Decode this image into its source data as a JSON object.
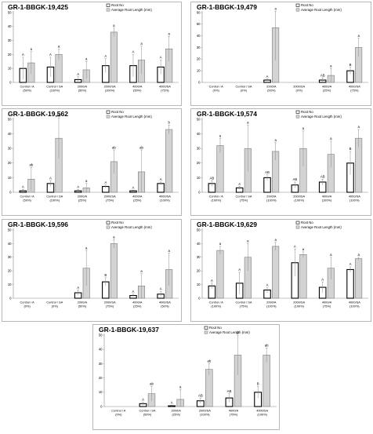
{
  "legend": {
    "root_no": "Root No",
    "root_length": "Average Root Length (mm)"
  },
  "colors": {
    "root_no_fill": "#ffffff",
    "root_length_fill": "#d3d3d3",
    "outline": "#000000",
    "error_bar": "#8c8c8c"
  },
  "chart_data": [
    {
      "type": "bar",
      "title": "GR-1-BBGK-19,425",
      "categories": [
        "Control / A (50%)",
        "Control / SA (100%)",
        "2000/A (50%)",
        "2000/SA (100%)",
        "4000/A (50%)",
        "4000/SA (75%)"
      ],
      "ylim": [
        0,
        50
      ],
      "yticks": [
        0,
        10,
        20,
        30,
        40,
        50
      ],
      "series": [
        {
          "name": "Root No",
          "values": [
            10,
            11,
            2,
            12,
            12,
            11
          ],
          "errors": [
            8,
            7,
            2,
            5,
            8,
            5
          ],
          "labels": [
            "A",
            "A",
            "A",
            "A",
            "A",
            "A"
          ]
        },
        {
          "name": "Average Root Length (mm)",
          "values": [
            14,
            20,
            9,
            36,
            16,
            24
          ],
          "errors": [
            8,
            4,
            6,
            3,
            10,
            9
          ],
          "labels": [
            "a",
            "a",
            "a",
            "a",
            "a",
            "a"
          ]
        }
      ]
    },
    {
      "type": "bar",
      "title": "GR-1-BBGK-19,479",
      "categories": [
        "Control / A (0%)",
        "Control / SA (0%)",
        "2000/A (50%)",
        "2000/SA (0%)",
        "4000/A (25%)",
        "4000/SA (75%)"
      ],
      "ylim": [
        0,
        60
      ],
      "yticks": [
        0,
        10,
        20,
        30,
        40,
        50,
        60
      ],
      "series": [
        {
          "name": "Root No",
          "values": [
            0,
            0,
            2,
            0,
            2,
            10
          ],
          "errors": [
            0,
            0,
            1,
            0,
            2,
            3
          ],
          "labels": [
            "",
            "",
            "A",
            "",
            "AB",
            "B"
          ]
        },
        {
          "name": "Average Root Length (mm)",
          "values": [
            0,
            0,
            47,
            0,
            6,
            30
          ],
          "errors": [
            0,
            0,
            28,
            0,
            6,
            8
          ],
          "labels": [
            "",
            "",
            "a",
            "",
            "a",
            "a"
          ]
        }
      ]
    },
    {
      "type": "bar",
      "title": "GR-1-BBGK-19,562",
      "categories": [
        "Control / A (50%)",
        "Control / SA (100%)",
        "2000/A (25%)",
        "2000/SA (75%)",
        "4000/A (25%)",
        "4000/SA (100%)"
      ],
      "ylim": [
        0,
        50
      ],
      "yticks": [
        0,
        10,
        20,
        30,
        40,
        50
      ],
      "series": [
        {
          "name": "Root No",
          "values": [
            1,
            6,
            1,
            4,
            1,
            6
          ],
          "errors": [
            1,
            2,
            1,
            1,
            0.5,
            1
          ],
          "labels": [
            "A",
            "A",
            "A",
            "A",
            "A",
            "A"
          ]
        },
        {
          "name": "Average Root Length (mm)",
          "values": [
            9,
            37,
            3,
            21,
            14,
            43
          ],
          "errors": [
            8,
            14,
            3,
            8,
            15,
            3
          ],
          "labels": [
            "ab",
            "ab",
            "a",
            "ab",
            "ab",
            "b"
          ]
        }
      ]
    },
    {
      "type": "bar",
      "title": "GR-1-BBGK-19,574",
      "categories": [
        "Control / A (100%)",
        "Control / SA (75%)",
        "2000/A (100%)",
        "2000/SA (100%)",
        "4000/A (100%)",
        "4000/SA (100%)"
      ],
      "ylim": [
        0,
        50
      ],
      "yticks": [
        0,
        10,
        20,
        30,
        40,
        50
      ],
      "series": [
        {
          "name": "Root No",
          "values": [
            6,
            3,
            10,
            5,
            7,
            20
          ],
          "errors": [
            2,
            1,
            2,
            2,
            2,
            8
          ],
          "labels": [
            "AB",
            "A",
            "AB",
            "AB",
            "AB",
            "B"
          ]
        },
        {
          "name": "Average Root Length (mm)",
          "values": [
            32,
            30,
            28,
            30,
            26,
            37
          ],
          "errors": [
            5,
            16,
            6,
            12,
            9,
            6
          ],
          "labels": [
            "a",
            "a",
            "a",
            "a",
            "a",
            "a"
          ]
        }
      ]
    },
    {
      "type": "bar",
      "title": "GR-1-BBGK-19,596",
      "categories": [
        "Control / A (0%)",
        "Control / SA (0%)",
        "2000/A (50%)",
        "2000/SA (75%)",
        "4000/A (25%)",
        "4000/SA (50%)"
      ],
      "ylim": [
        0,
        50
      ],
      "yticks": [
        0,
        10,
        20,
        30,
        40,
        50
      ],
      "series": [
        {
          "name": "Root No",
          "values": [
            0,
            0,
            4,
            12,
            2,
            3
          ],
          "errors": [
            0,
            0,
            2,
            3,
            1,
            2
          ],
          "labels": [
            "",
            "",
            "A",
            "B",
            "A",
            "A"
          ]
        },
        {
          "name": "Average Root Length (mm)",
          "values": [
            0,
            0,
            22,
            40,
            9,
            21
          ],
          "errors": [
            0,
            0,
            13,
            3,
            9,
            12
          ],
          "labels": [
            "",
            "",
            "a",
            "a",
            "a",
            "a"
          ]
        }
      ]
    },
    {
      "type": "bar",
      "title": "GR-1-BBGK-19,629",
      "categories": [
        "Control / A (100%)",
        "Control / SA (75%)",
        "2000/A (100%)",
        "2000/SA (100%)",
        "4000/A (75%)",
        "4000/SA (100%)"
      ],
      "ylim": [
        0,
        50
      ],
      "yticks": [
        0,
        10,
        20,
        30,
        40,
        50
      ],
      "series": [
        {
          "name": "Root No",
          "values": [
            9,
            11,
            6,
            26,
            8,
            21
          ],
          "errors": [
            2,
            8,
            2,
            10,
            4,
            2
          ],
          "labels": [
            "A",
            "A",
            "A",
            "A",
            "A",
            "A"
          ]
        },
        {
          "name": "Average Root Length (mm)",
          "values": [
            35,
            30,
            38,
            32,
            22,
            29
          ],
          "errors": [
            3,
            10,
            3,
            2,
            8,
            1
          ],
          "labels": [
            "a",
            "a",
            "a",
            "a",
            "a",
            "a"
          ]
        }
      ]
    },
    {
      "type": "bar",
      "title": "GR-1-BBGK-19,637",
      "categories": [
        "Control / A (0%)",
        "Control / SA (50%)",
        "2000/A (25%)",
        "2000/SA (100%)",
        "4000/A (75%)",
        "4000/SA (100%)"
      ],
      "ylim": [
        0,
        50
      ],
      "yticks": [
        0,
        10,
        20,
        30,
        40,
        50
      ],
      "series": [
        {
          "name": "Root No",
          "values": [
            0,
            2,
            0.5,
            4,
            6,
            10
          ],
          "errors": [
            0,
            1,
            0.5,
            2,
            3,
            4
          ],
          "labels": [
            "",
            "A",
            "A",
            "AB",
            "AB",
            "B"
          ]
        },
        {
          "name": "Average Root Length (mm)",
          "values": [
            0,
            9,
            5,
            26,
            36,
            36
          ],
          "errors": [
            0,
            5,
            7,
            4,
            14,
            5
          ],
          "labels": [
            "",
            "ab",
            "a",
            "ab",
            "b",
            "ab"
          ]
        }
      ]
    }
  ]
}
